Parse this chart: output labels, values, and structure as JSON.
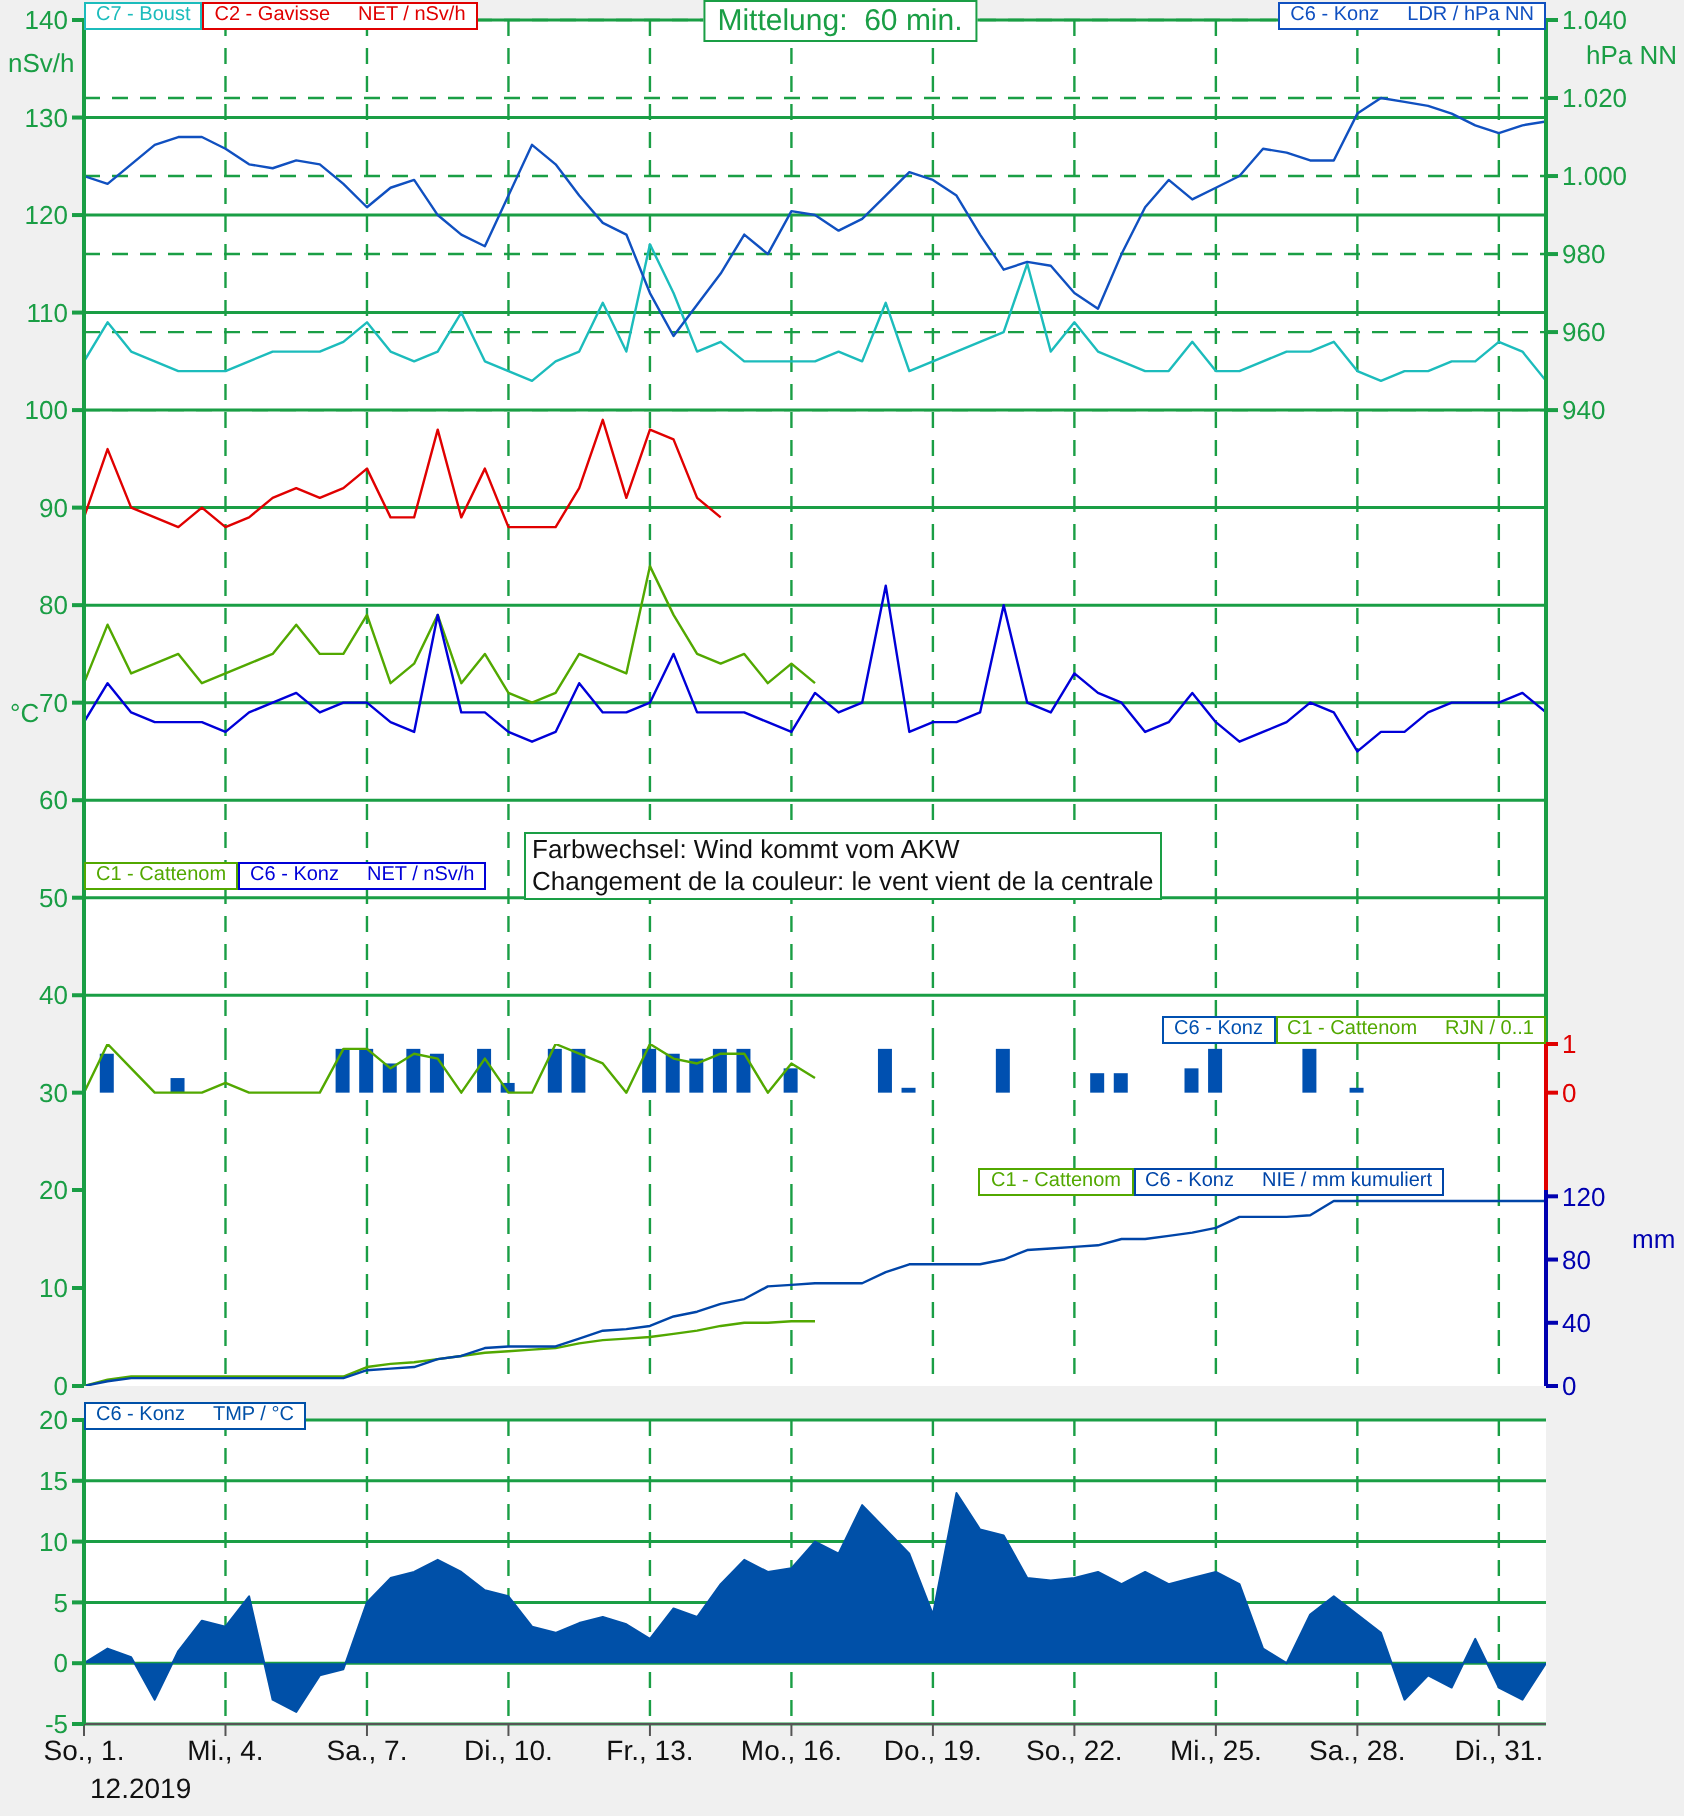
{
  "chart_data": [
    {
      "type": "line",
      "title": "Mittelung:  60 min.",
      "ylabel": "nSv/h",
      "y2label": "hPa NN",
      "x": [
        "2019-12-01T00:00",
        "2019-12-01T12:00",
        "2019-12-02T00:00",
        "2019-12-02T12:00",
        "2019-12-03T00:00",
        "2019-12-03T12:00",
        "2019-12-04T00:00",
        "2019-12-04T12:00",
        "2019-12-05T00:00",
        "2019-12-05T12:00",
        "2019-12-06T00:00",
        "2019-12-06T12:00",
        "2019-12-07T00:00",
        "2019-12-07T12:00",
        "2019-12-08T00:00",
        "2019-12-08T12:00",
        "2019-12-09T00:00",
        "2019-12-09T12:00",
        "2019-12-10T00:00",
        "2019-12-10T12:00",
        "2019-12-11T00:00",
        "2019-12-11T12:00",
        "2019-12-12T00:00",
        "2019-12-12T12:00",
        "2019-12-13T00:00",
        "2019-12-13T12:00",
        "2019-12-14T00:00",
        "2019-12-14T12:00",
        "2019-12-15T00:00",
        "2019-12-15T12:00",
        "2019-12-16T00:00",
        "2019-12-16T12:00",
        "2019-12-17T00:00",
        "2019-12-17T12:00",
        "2019-12-18T00:00",
        "2019-12-18T12:00",
        "2019-12-19T00:00",
        "2019-12-19T12:00",
        "2019-12-20T00:00",
        "2019-12-20T12:00",
        "2019-12-21T00:00",
        "2019-12-21T12:00",
        "2019-12-22T00:00",
        "2019-12-22T12:00",
        "2019-12-23T00:00",
        "2019-12-23T12:00",
        "2019-12-24T00:00",
        "2019-12-24T12:00",
        "2019-12-25T00:00",
        "2019-12-25T12:00",
        "2019-12-26T00:00",
        "2019-12-26T12:00",
        "2019-12-27T00:00",
        "2019-12-27T12:00",
        "2019-12-28T00:00",
        "2019-12-28T12:00",
        "2019-12-29T00:00",
        "2019-12-29T12:00",
        "2019-12-30T00:00",
        "2019-12-30T12:00",
        "2019-12-31T00:00",
        "2019-12-31T12:00",
        "2020-01-01T00:00"
      ],
      "series": [
        {
          "name": "C7 - Boust",
          "color": "#1cbcbc",
          "values": [
            105,
            109,
            106,
            105,
            104,
            104,
            104,
            105,
            106,
            106,
            106,
            107,
            109,
            106,
            105,
            106,
            110,
            105,
            104,
            103,
            105,
            106,
            111,
            106,
            117,
            112,
            106,
            107,
            105,
            105,
            105,
            105,
            106,
            105,
            111,
            104,
            105,
            106,
            107,
            108,
            115,
            106,
            109,
            106,
            105,
            104,
            104,
            107,
            104,
            104,
            105,
            106,
            106,
            107,
            104,
            103,
            104,
            104,
            105,
            105,
            107,
            106,
            103
          ]
        },
        {
          "name": "C2 - Gavisse",
          "color": "#e00000",
          "values": [
            89,
            96,
            90,
            89,
            88,
            90,
            88,
            89,
            91,
            92,
            91,
            92,
            94,
            89,
            89,
            98,
            89,
            94,
            88,
            88,
            88,
            92,
            99,
            91,
            98,
            97,
            91,
            89,
            null,
            null,
            null,
            null,
            null,
            null,
            null,
            null,
            null,
            null,
            null,
            null,
            null,
            null,
            null,
            null,
            null,
            null,
            null,
            null,
            null,
            null,
            null,
            null,
            null,
            null,
            null,
            null,
            null,
            null,
            null,
            null,
            null,
            null,
            null
          ]
        },
        {
          "name": "C6 - Konz",
          "color": "#1050c0",
          "axis": "y2",
          "values": [
            1000,
            998,
            1003,
            1008,
            1010,
            1010,
            1007,
            1003,
            1002,
            1004,
            1003,
            998,
            992,
            997,
            999,
            990,
            985,
            982,
            995,
            1008,
            1003,
            995,
            988,
            985,
            970,
            959,
            967,
            975,
            985,
            980,
            991,
            990,
            986,
            989,
            995,
            1001,
            999,
            995,
            985,
            976,
            978,
            977,
            970,
            966,
            980,
            992,
            999,
            994,
            997,
            1000,
            1007,
            1006,
            1004,
            1004,
            1016,
            1020,
            1019,
            1018,
            1016,
            1013,
            1011,
            1013,
            1014
          ]
        },
        {
          "name": "C1 - Cattenom",
          "color": "#52a800",
          "values": [
            72,
            78,
            73,
            74,
            75,
            72,
            73,
            74,
            75,
            78,
            75,
            75,
            79,
            72,
            74,
            79,
            72,
            75,
            71,
            70,
            71,
            75,
            74,
            73,
            84,
            79,
            75,
            74,
            75,
            72,
            74,
            72,
            null,
            null,
            null,
            null,
            null,
            null,
            null,
            null,
            null,
            null,
            null,
            null,
            null,
            null,
            null,
            null,
            null,
            null,
            null,
            null,
            null,
            null,
            null,
            null,
            null,
            null,
            null,
            null,
            null,
            null,
            null
          ]
        },
        {
          "name": "C6 - Konz",
          "color": "#0000d8",
          "values": [
            68,
            72,
            69,
            68,
            68,
            68,
            67,
            69,
            70,
            71,
            69,
            70,
            70,
            68,
            67,
            79,
            69,
            69,
            67,
            66,
            67,
            72,
            69,
            69,
            70,
            75,
            69,
            69,
            69,
            68,
            67,
            71,
            69,
            70,
            82,
            67,
            68,
            68,
            69,
            80,
            70,
            69,
            73,
            71,
            70,
            67,
            68,
            71,
            68,
            66,
            67,
            68,
            70,
            69,
            65,
            67,
            67,
            69,
            70,
            70,
            70,
            71,
            69
          ]
        }
      ],
      "xlim": [
        "2019-12-01",
        "2020-01-01"
      ],
      "xticks": [
        {
          "value": "2019-12-01",
          "label": null
        },
        {
          "value": "2019-12-04",
          "label": null
        },
        {
          "value": "2019-12-07",
          "label": null
        },
        {
          "value": "2019-12-10",
          "label": null
        },
        {
          "value": "2019-12-13",
          "label": null
        },
        {
          "value": "2019-12-16",
          "label": null
        },
        {
          "value": "2019-12-19",
          "label": null
        },
        {
          "value": "2019-12-22",
          "label": null
        },
        {
          "value": "2019-12-25",
          "label": null
        },
        {
          "value": "2019-12-28",
          "label": null
        },
        {
          "value": "2019-12-31",
          "label": null
        }
      ],
      "ylim": [
        35,
        140
      ],
      "yticks": [
        40,
        50,
        60,
        70,
        80,
        90,
        100,
        110,
        120,
        130,
        140
      ],
      "y2lim": [
        777.5,
        1040
      ],
      "y2ticks": [
        {
          "value": 940,
          "label": "940"
        },
        {
          "value": 960,
          "label": "960"
        },
        {
          "value": 980,
          "label": "980"
        },
        {
          "value": 1000,
          "label": "1.000"
        },
        {
          "value": 1020,
          "label": "1.020"
        },
        {
          "value": 1040,
          "label": "1.040"
        }
      ],
      "grid": true,
      "legend": "top left",
      "tick_labels": "y",
      "annotations": [
        "NET / nSv/h",
        "LDR / hPa NN",
        "NET / nSv/h",
        "°C",
        "Farbwechsel: Wind kommt vom AKW",
        "Changement de la couleur: le vent vient de la centrale"
      ]
    },
    {
      "type": "bar",
      "legend_title": "RJN / 0..1",
      "x": [
        "2019-12-01T00:00",
        "2019-12-01T12:00",
        "2019-12-02T00:00",
        "2019-12-02T12:00",
        "2019-12-03T00:00",
        "2019-12-03T12:00",
        "2019-12-04T00:00",
        "2019-12-04T12:00",
        "2019-12-05T00:00",
        "2019-12-05T12:00",
        "2019-12-06T00:00",
        "2019-12-06T12:00",
        "2019-12-07T00:00",
        "2019-12-07T12:00",
        "2019-12-08T00:00",
        "2019-12-08T12:00",
        "2019-12-09T00:00",
        "2019-12-09T12:00",
        "2019-12-10T00:00",
        "2019-12-10T12:00",
        "2019-12-11T00:00",
        "2019-12-11T12:00",
        "2019-12-12T00:00",
        "2019-12-12T12:00",
        "2019-12-13T00:00",
        "2019-12-13T12:00",
        "2019-12-14T00:00",
        "2019-12-14T12:00",
        "2019-12-15T00:00",
        "2019-12-15T12:00",
        "2019-12-16T00:00",
        "2019-12-16T12:00",
        "2019-12-17T00:00",
        "2019-12-17T12:00",
        "2019-12-18T00:00",
        "2019-12-18T12:00",
        "2019-12-19T00:00",
        "2019-12-19T12:00",
        "2019-12-20T00:00",
        "2019-12-20T12:00",
        "2019-12-21T00:00",
        "2019-12-21T12:00",
        "2019-12-22T00:00",
        "2019-12-22T12:00",
        "2019-12-23T00:00",
        "2019-12-23T12:00",
        "2019-12-24T00:00",
        "2019-12-24T12:00",
        "2019-12-25T00:00",
        "2019-12-25T12:00",
        "2019-12-26T00:00",
        "2019-12-26T12:00",
        "2019-12-27T00:00",
        "2019-12-27T12:00",
        "2019-12-28T00:00",
        "2019-12-28T12:00",
        "2019-12-29T00:00",
        "2019-12-29T12:00",
        "2019-12-30T00:00",
        "2019-12-30T12:00",
        "2019-12-31T00:00",
        "2019-12-31T12:00",
        "2020-01-01T00:00"
      ],
      "series": [
        {
          "name": "C6 - Konz",
          "color": "#0050b0",
          "axis": "y2",
          "values": [
            0,
            0.8,
            0,
            0,
            0.3,
            0,
            0,
            0,
            0,
            0,
            0,
            0.9,
            0.9,
            0.6,
            0.9,
            0.8,
            0,
            0.9,
            0.2,
            0,
            0.9,
            0.9,
            0,
            0,
            0.9,
            0.8,
            0.7,
            0.9,
            0.9,
            0,
            0.5,
            0,
            0,
            0,
            0.9,
            0.1,
            0,
            0,
            0,
            0.9,
            0,
            0,
            0,
            0.4,
            0.4,
            0,
            0,
            0.5,
            0.9,
            0,
            0,
            0,
            0.9,
            0,
            0.1,
            0,
            0,
            0,
            0,
            0,
            0,
            0,
            0
          ]
        },
        {
          "name": "C1 - Cattenom",
          "type": "line",
          "color": "#52a800",
          "axis": "y2",
          "values": [
            0,
            1,
            0.5,
            0,
            0,
            0,
            0.2,
            0,
            0,
            0,
            0,
            0.9,
            0.9,
            0.5,
            0.8,
            0.7,
            0,
            0.7,
            0,
            0,
            1,
            0.8,
            0.6,
            0,
            1,
            0.7,
            0.6,
            0.8,
            0.8,
            0,
            0.6,
            0.3,
            null,
            null,
            null,
            null,
            null,
            null,
            null,
            null,
            null,
            null,
            null,
            null,
            null,
            null,
            null,
            null,
            null,
            null,
            null,
            null,
            null,
            null,
            null,
            null,
            null,
            null,
            null,
            null,
            null,
            null,
            null
          ]
        }
      ],
      "xlim": [
        "2019-12-01",
        "2020-01-01"
      ],
      "xticks": [
        {
          "value": "2019-12-01",
          "label": null
        },
        {
          "value": "2019-12-04",
          "label": null
        },
        {
          "value": "2019-12-07",
          "label": null
        },
        {
          "value": "2019-12-10",
          "label": null
        },
        {
          "value": "2019-12-13",
          "label": null
        },
        {
          "value": "2019-12-16",
          "label": null
        },
        {
          "value": "2019-12-19",
          "label": null
        },
        {
          "value": "2019-12-22",
          "label": null
        },
        {
          "value": "2019-12-25",
          "label": null
        },
        {
          "value": "2019-12-28",
          "label": null
        },
        {
          "value": "2019-12-31",
          "label": null
        }
      ],
      "ylim": [
        20,
        35
      ],
      "yticks": [
        20,
        30
      ],
      "y2lim": [
        -2,
        1
      ],
      "y2ticks": [
        0,
        1
      ],
      "grid": "x",
      "legend": "top right",
      "tick_labels": "y"
    },
    {
      "type": "line",
      "y2label": "mm",
      "legend_title": "NIE / mm kumuliert",
      "x": [
        "2019-12-01T00:00",
        "2019-12-01T12:00",
        "2019-12-02T00:00",
        "2019-12-02T12:00",
        "2019-12-03T00:00",
        "2019-12-03T12:00",
        "2019-12-04T00:00",
        "2019-12-04T12:00",
        "2019-12-05T00:00",
        "2019-12-05T12:00",
        "2019-12-06T00:00",
        "2019-12-06T12:00",
        "2019-12-07T00:00",
        "2019-12-07T12:00",
        "2019-12-08T00:00",
        "2019-12-08T12:00",
        "2019-12-09T00:00",
        "2019-12-09T12:00",
        "2019-12-10T00:00",
        "2019-12-10T12:00",
        "2019-12-11T00:00",
        "2019-12-11T12:00",
        "2019-12-12T00:00",
        "2019-12-12T12:00",
        "2019-12-13T00:00",
        "2019-12-13T12:00",
        "2019-12-14T00:00",
        "2019-12-14T12:00",
        "2019-12-15T00:00",
        "2019-12-15T12:00",
        "2019-12-16T00:00",
        "2019-12-16T12:00",
        "2019-12-17T00:00",
        "2019-12-17T12:00",
        "2019-12-18T00:00",
        "2019-12-18T12:00",
        "2019-12-19T00:00",
        "2019-12-19T12:00",
        "2019-12-20T00:00",
        "2019-12-20T12:00",
        "2019-12-21T00:00",
        "2019-12-21T12:00",
        "2019-12-22T00:00",
        "2019-12-22T12:00",
        "2019-12-23T00:00",
        "2019-12-23T12:00",
        "2019-12-24T00:00",
        "2019-12-24T12:00",
        "2019-12-25T00:00",
        "2019-12-25T12:00",
        "2019-12-26T00:00",
        "2019-12-26T12:00",
        "2019-12-27T00:00",
        "2019-12-27T12:00",
        "2019-12-28T00:00",
        "2019-12-28T12:00",
        "2019-12-29T00:00",
        "2019-12-29T12:00",
        "2019-12-30T00:00",
        "2019-12-30T12:00",
        "2019-12-31T00:00",
        "2019-12-31T12:00",
        "2020-01-01T00:00"
      ],
      "series": [
        {
          "name": "C1 - Cattenom",
          "color": "#52a800",
          "axis": "y2",
          "values": [
            0,
            4,
            6,
            6,
            6,
            6,
            6,
            6,
            6,
            6,
            6,
            6,
            12,
            14,
            15,
            17,
            19,
            21,
            22,
            23,
            24,
            27,
            29,
            30,
            31,
            33,
            35,
            38,
            40,
            40,
            41,
            41,
            null,
            null,
            null,
            null,
            null,
            null,
            null,
            null,
            null,
            null,
            null,
            null,
            null,
            null,
            null,
            null,
            null,
            null,
            null,
            null,
            null,
            null,
            null,
            null,
            null,
            null,
            null,
            null,
            null,
            null,
            null
          ]
        },
        {
          "name": "C6 - Konz",
          "color": "#0045a8",
          "axis": "y2",
          "values": [
            0,
            3,
            5,
            5,
            5,
            5,
            5,
            5,
            5,
            5,
            5,
            5,
            10,
            11,
            12,
            17,
            19,
            24,
            25,
            25,
            25,
            30,
            35,
            36,
            38,
            44,
            47,
            52,
            55,
            63,
            64,
            65,
            65,
            65,
            72,
            77,
            77,
            77,
            77,
            80,
            86,
            87,
            88,
            89,
            93,
            93,
            95,
            97,
            100,
            107,
            107,
            107,
            108,
            117,
            117,
            117,
            117,
            117,
            117,
            117,
            117,
            117,
            117
          ]
        }
      ],
      "xlim": [
        "2019-12-01",
        "2020-01-01"
      ],
      "xticks": [
        {
          "value": "2019-12-01",
          "label": null
        },
        {
          "value": "2019-12-04",
          "label": null
        },
        {
          "value": "2019-12-07",
          "label": null
        },
        {
          "value": "2019-12-10",
          "label": null
        },
        {
          "value": "2019-12-13",
          "label": null
        },
        {
          "value": "2019-12-16",
          "label": null
        },
        {
          "value": "2019-12-19",
          "label": null
        },
        {
          "value": "2019-12-22",
          "label": null
        },
        {
          "value": "2019-12-25",
          "label": null
        },
        {
          "value": "2019-12-28",
          "label": null
        },
        {
          "value": "2019-12-31",
          "label": null
        }
      ],
      "ylim": [
        0,
        20
      ],
      "yticks": [
        0,
        10
      ],
      "y2lim": [
        0,
        124
      ],
      "y2ticks": [
        0,
        40,
        80,
        120
      ],
      "grid": "x",
      "legend": "top right",
      "tick_labels": "y"
    },
    {
      "type": "area",
      "legend_title": "TMP / °C",
      "xlabel": "12.2019",
      "x": [
        "2019-12-01T00:00",
        "2019-12-01T12:00",
        "2019-12-02T00:00",
        "2019-12-02T12:00",
        "2019-12-03T00:00",
        "2019-12-03T12:00",
        "2019-12-04T00:00",
        "2019-12-04T12:00",
        "2019-12-05T00:00",
        "2019-12-05T12:00",
        "2019-12-06T00:00",
        "2019-12-06T12:00",
        "2019-12-07T00:00",
        "2019-12-07T12:00",
        "2019-12-08T00:00",
        "2019-12-08T12:00",
        "2019-12-09T00:00",
        "2019-12-09T12:00",
        "2019-12-10T00:00",
        "2019-12-10T12:00",
        "2019-12-11T00:00",
        "2019-12-11T12:00",
        "2019-12-12T00:00",
        "2019-12-12T12:00",
        "2019-12-13T00:00",
        "2019-12-13T12:00",
        "2019-12-14T00:00",
        "2019-12-14T12:00",
        "2019-12-15T00:00",
        "2019-12-15T12:00",
        "2019-12-16T00:00",
        "2019-12-16T12:00",
        "2019-12-17T00:00",
        "2019-12-17T12:00",
        "2019-12-18T00:00",
        "2019-12-18T12:00",
        "2019-12-19T00:00",
        "2019-12-19T12:00",
        "2019-12-20T00:00",
        "2019-12-20T12:00",
        "2019-12-21T00:00",
        "2019-12-21T12:00",
        "2019-12-22T00:00",
        "2019-12-22T12:00",
        "2019-12-23T00:00",
        "2019-12-23T12:00",
        "2019-12-24T00:00",
        "2019-12-24T12:00",
        "2019-12-25T00:00",
        "2019-12-25T12:00",
        "2019-12-26T00:00",
        "2019-12-26T12:00",
        "2019-12-27T00:00",
        "2019-12-27T12:00",
        "2019-12-28T00:00",
        "2019-12-28T12:00",
        "2019-12-29T00:00",
        "2019-12-29T12:00",
        "2019-12-30T00:00",
        "2019-12-30T12:00",
        "2019-12-31T00:00",
        "2019-12-31T12:00",
        "2020-01-01T00:00"
      ],
      "series": [
        {
          "name": "C6 - Konz",
          "color": "#0050a8",
          "values": [
            0,
            1.2,
            0.5,
            -3,
            1,
            3.5,
            3,
            5.5,
            -3,
            -4,
            -1,
            -0.5,
            5,
            7,
            7.5,
            8.5,
            7.5,
            6,
            5.5,
            3,
            2.5,
            3.3,
            3.8,
            3.2,
            2,
            4.5,
            3.8,
            6.5,
            8.5,
            7.5,
            7.8,
            10,
            9,
            13,
            11,
            9,
            4,
            14,
            11,
            10.5,
            7,
            6.8,
            7,
            7.5,
            6.5,
            7.5,
            6.5,
            7,
            7.5,
            6.5,
            1.2,
            0,
            4,
            5.5,
            4,
            2.5,
            -3,
            -1,
            -2,
            2,
            -2,
            -3,
            0
          ]
        }
      ],
      "xlim": [
        "2019-12-01",
        "2020-01-01"
      ],
      "xticks": [
        {
          "value": "2019-12-01",
          "label": "So., 1."
        },
        {
          "value": "2019-12-04",
          "label": "Mi., 4."
        },
        {
          "value": "2019-12-07",
          "label": "Sa., 7."
        },
        {
          "value": "2019-12-10",
          "label": "Di., 10."
        },
        {
          "value": "2019-12-13",
          "label": "Fr., 13."
        },
        {
          "value": "2019-12-16",
          "label": "Mo., 16."
        },
        {
          "value": "2019-12-19",
          "label": "Do., 19."
        },
        {
          "value": "2019-12-22",
          "label": "So., 22."
        },
        {
          "value": "2019-12-25",
          "label": "Mi., 25."
        },
        {
          "value": "2019-12-28",
          "label": "Sa., 28."
        },
        {
          "value": "2019-12-31",
          "label": "Di., 31."
        }
      ],
      "ylim": [
        -5,
        20
      ],
      "yticks": [
        -5,
        0,
        5,
        10,
        15,
        20
      ],
      "grid": true,
      "legend": "top left"
    }
  ]
}
